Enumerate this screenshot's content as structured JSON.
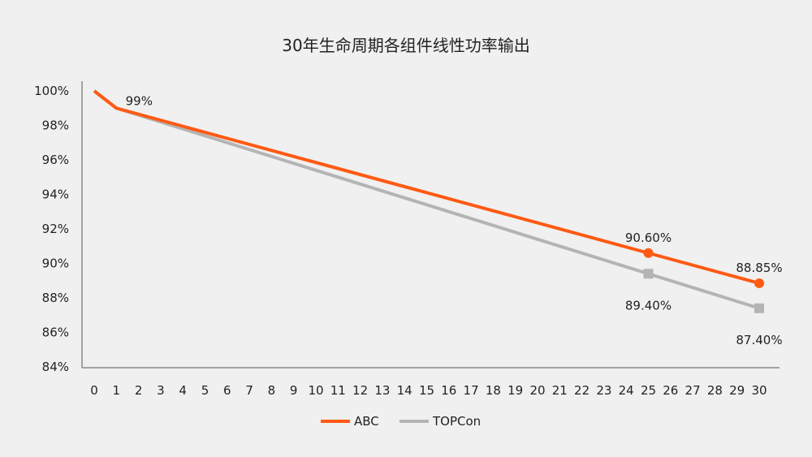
{
  "chart_data": {
    "type": "line",
    "title": "30年生命周期各组件线性功率输出",
    "xlabel": "",
    "ylabel": "",
    "x": [
      0,
      1,
      2,
      3,
      4,
      5,
      6,
      7,
      8,
      9,
      10,
      11,
      12,
      13,
      14,
      15,
      16,
      17,
      18,
      19,
      20,
      21,
      22,
      23,
      24,
      25,
      26,
      27,
      28,
      29,
      30
    ],
    "ylim": [
      84,
      100
    ],
    "yticks": [
      "84%",
      "86%",
      "88%",
      "90%",
      "92%",
      "94%",
      "96%",
      "98%",
      "100%"
    ],
    "grid": false,
    "legend_position": "bottom",
    "series": [
      {
        "name": "ABC",
        "color": "#ff5a14",
        "marker": "circle",
        "points": [
          [
            0,
            100
          ],
          [
            1,
            99
          ],
          [
            25,
            90.6
          ],
          [
            30,
            88.85
          ]
        ],
        "labels": [
          {
            "x": 1,
            "y": 99,
            "text": "99%"
          },
          {
            "x": 25,
            "y": 90.6,
            "text": "90.60%"
          },
          {
            "x": 30,
            "y": 88.85,
            "text": "88.85%"
          }
        ]
      },
      {
        "name": "TOPCon",
        "color": "#b4b4b4",
        "marker": "square",
        "points": [
          [
            0,
            100
          ],
          [
            1,
            99
          ],
          [
            25,
            89.4
          ],
          [
            30,
            87.4
          ]
        ],
        "labels": [
          {
            "x": 25,
            "y": 89.4,
            "text": "89.40%"
          },
          {
            "x": 30,
            "y": 87.4,
            "text": "87.40%"
          }
        ]
      }
    ]
  }
}
